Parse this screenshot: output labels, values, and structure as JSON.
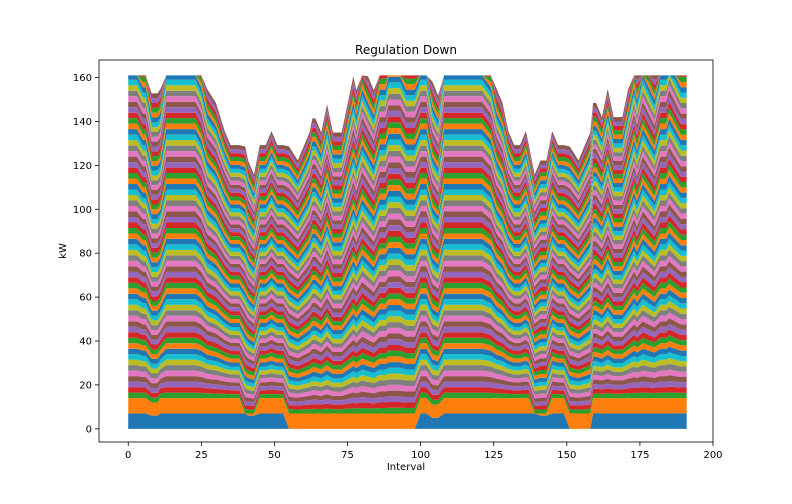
{
  "chart_data": {
    "type": "area",
    "stacked": true,
    "title": "Regulation Down",
    "xlabel": "Interval",
    "ylabel": "kW",
    "xlim": [
      -10,
      200
    ],
    "ylim": [
      -6,
      168
    ],
    "xticks": [
      0,
      25,
      50,
      75,
      100,
      125,
      150,
      175,
      200
    ],
    "yticks": [
      0,
      20,
      40,
      60,
      80,
      100,
      120,
      140,
      160
    ],
    "grid": false,
    "legend": "none",
    "x": [
      0,
      3,
      5,
      6,
      8,
      10,
      11,
      13,
      16,
      20,
      23,
      25,
      27,
      30,
      33,
      35,
      38,
      40,
      41,
      43,
      45,
      47,
      49,
      51,
      53,
      55,
      58,
      62,
      63,
      64,
      66,
      68,
      70,
      73,
      75,
      77,
      78,
      80,
      82,
      84,
      86,
      88,
      89,
      91,
      93,
      95,
      97,
      98,
      100,
      102,
      104,
      106,
      108,
      110,
      113,
      117,
      121,
      124,
      126,
      128,
      130,
      132,
      134,
      136,
      137,
      139,
      141,
      143,
      145,
      147,
      149,
      151,
      154,
      158,
      159,
      160,
      162,
      164,
      166,
      169,
      171,
      173,
      174,
      176,
      178,
      180,
      182,
      184,
      185,
      187,
      189,
      191
    ],
    "segment_increment": [
      2.5,
      2.5,
      2.4,
      2.4,
      2.2,
      2.2,
      2.2,
      2.5,
      2.5,
      2.5,
      2.5,
      2.4,
      2.2,
      2.1,
      1.9,
      1.8,
      1.8,
      1.9,
      1.8,
      1.7,
      1.8,
      1.8,
      1.9,
      1.8,
      1.8,
      1.9,
      1.8,
      2.0,
      2.1,
      2.1,
      2.0,
      2.2,
      2.0,
      2.0,
      2.2,
      2.4,
      2.3,
      2.5,
      2.4,
      2.3,
      2.5,
      2.5,
      2.6,
      2.6,
      2.6,
      2.5,
      2.5,
      2.5,
      2.5,
      2.5,
      2.3,
      2.2,
      2.5,
      2.5,
      2.5,
      2.5,
      2.5,
      2.4,
      2.2,
      2.1,
      1.9,
      1.8,
      1.8,
      1.9,
      1.8,
      1.7,
      1.8,
      1.8,
      1.9,
      1.8,
      1.8,
      1.9,
      1.8,
      2.0,
      2.1,
      2.1,
      2.0,
      2.2,
      2.0,
      2.0,
      2.2,
      2.4,
      2.3,
      2.5,
      2.4,
      2.3,
      2.5,
      2.5,
      2.6,
      2.5,
      2.4,
      2.4
    ],
    "series_colors": [
      "#1f77b4",
      "#ff7f0e",
      "#2ca02c",
      "#d62728",
      "#9467bd",
      "#8c564b",
      "#e377c2",
      "#7f7f7f",
      "#bcbd22",
      "#17becf"
    ],
    "series": [
      {
        "values": [
          7,
          7,
          7,
          7,
          6,
          6,
          7,
          7,
          7,
          7,
          7,
          7,
          7,
          7,
          7,
          7,
          7,
          7,
          6,
          6,
          7,
          7,
          7,
          7,
          7,
          0,
          0,
          0,
          0,
          0,
          0,
          0,
          0,
          0,
          0,
          0,
          0,
          0,
          0,
          0,
          0,
          0,
          0,
          0,
          0,
          0,
          0,
          0,
          7,
          7,
          5,
          5,
          7,
          7,
          7,
          7,
          7,
          7,
          7,
          7,
          7,
          7,
          7,
          7,
          7,
          7,
          6,
          6,
          7,
          7,
          7,
          0,
          0,
          0,
          7,
          7,
          7,
          7,
          7,
          7,
          7,
          7,
          7,
          7,
          7,
          7,
          7,
          7,
          7,
          7,
          7,
          7
        ]
      },
      {
        "values": [
          7,
          7,
          7,
          7,
          6,
          6,
          7,
          7,
          7,
          7,
          7,
          7,
          7,
          7,
          7,
          7,
          7,
          0,
          1,
          1,
          7,
          7,
          7,
          7,
          7,
          7,
          7,
          7,
          7,
          7,
          7,
          7,
          7,
          7,
          7,
          7,
          7,
          7,
          7,
          7,
          7,
          7,
          7,
          7,
          7,
          7,
          7,
          7,
          7,
          7,
          6,
          6,
          7,
          7,
          7,
          7,
          7,
          7,
          7,
          7,
          7,
          7,
          7,
          7,
          7,
          0,
          1,
          1,
          7,
          7,
          7,
          7,
          7,
          7,
          7,
          7,
          7,
          7,
          7,
          7,
          7,
          7,
          7,
          7,
          7,
          7,
          7,
          7,
          7,
          7,
          7,
          7
        ]
      }
    ]
  }
}
